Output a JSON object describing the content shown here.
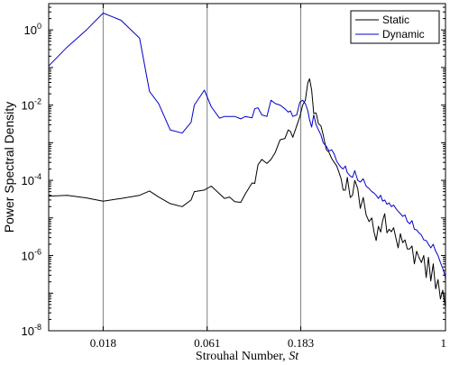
{
  "chart_data": {
    "type": "line",
    "xlabel": "Strouhal Number, ",
    "xlabel_italic": "St",
    "ylabel": "Power Spectral Density",
    "xscale": "log",
    "yscale": "log",
    "xlim": [
      0.0095,
      1
    ],
    "ylim": [
      1e-08,
      5
    ],
    "x_ticks": [
      {
        "value": 0.018,
        "label": "0.018"
      },
      {
        "value": 0.061,
        "label": "0.061"
      },
      {
        "value": 0.183,
        "label": "0.183"
      },
      {
        "value": 1,
        "label": "1"
      }
    ],
    "y_ticks": [
      {
        "value": 1e-08,
        "base": "10",
        "exp": "-8"
      },
      {
        "value": 1e-06,
        "base": "10",
        "exp": "-6"
      },
      {
        "value": 0.0001,
        "base": "10",
        "exp": "-4"
      },
      {
        "value": 0.01,
        "base": "10",
        "exp": "-2"
      },
      {
        "value": 1,
        "base": "10",
        "exp": "0"
      }
    ],
    "vertical_lines": [
      0.018,
      0.061,
      0.183
    ],
    "legend_position": "top-right",
    "grid": false,
    "series": [
      {
        "name": "Static",
        "color": "#000000",
        "points": [
          [
            0.0095,
            3.8e-05
          ],
          [
            0.0118,
            4e-05
          ],
          [
            0.0148,
            3.4e-05
          ],
          [
            0.018,
            2.8e-05
          ],
          [
            0.0222,
            3.3e-05
          ],
          [
            0.0276,
            4e-05
          ],
          [
            0.031,
            5.2e-05
          ],
          [
            0.0345,
            3.6e-05
          ],
          [
            0.0395,
            2.4e-05
          ],
          [
            0.0455,
            2e-05
          ],
          [
            0.0505,
            3e-05
          ],
          [
            0.0525,
            5e-05
          ],
          [
            0.059,
            5.5e-05
          ],
          [
            0.064,
            7e-05
          ],
          [
            0.0705,
            4.4e-05
          ],
          [
            0.0748,
            3.3e-05
          ],
          [
            0.0793,
            3.6e-05
          ],
          [
            0.0843,
            2.7e-05
          ],
          [
            0.0905,
            2.6e-05
          ],
          [
            0.0955,
            4.4e-05
          ],
          [
            0.1033,
            8.5e-05
          ],
          [
            0.1066,
            8.3e-05
          ],
          [
            0.1108,
            0.00026
          ],
          [
            0.1158,
            0.00036
          ],
          [
            0.123,
            0.00028
          ],
          [
            0.129,
            0.00036
          ],
          [
            0.1356,
            0.00055
          ],
          [
            0.1435,
            0.0012
          ],
          [
            0.152,
            0.0013
          ],
          [
            0.158,
            0.0022
          ],
          [
            0.162,
            0.002
          ],
          [
            0.1667,
            0.0014
          ],
          [
            0.1745,
            0.0028
          ],
          [
            0.181,
            0.0049
          ],
          [
            0.187,
            0.01
          ],
          [
            0.193,
            0.0135
          ],
          [
            0.199,
            0.04
          ],
          [
            0.203,
            0.05
          ],
          [
            0.208,
            0.025
          ],
          [
            0.213,
            0.006
          ],
          [
            0.219,
            0.0062
          ],
          [
            0.225,
            0.0032
          ],
          [
            0.232,
            0.0028
          ],
          [
            0.238,
            0.0016
          ],
          [
            0.247,
            0.00065
          ],
          [
            0.255,
            0.00055
          ],
          [
            0.263,
            0.00038
          ],
          [
            0.271,
            0.0003
          ],
          [
            0.279,
            0.00024
          ],
          [
            0.287,
            0.00016
          ],
          [
            0.294,
            0.00011
          ],
          [
            0.301,
            5.5e-05
          ],
          [
            0.309,
            5.5e-05
          ],
          [
            0.316,
            0.00012
          ],
          [
            0.327,
            3.5e-05
          ],
          [
            0.336,
            4e-05
          ],
          [
            0.345,
            0.0001
          ],
          [
            0.357,
            6e-05
          ],
          [
            0.368,
            1.8e-05
          ],
          [
            0.381,
            3.5e-05
          ],
          [
            0.394,
            1.2e-05
          ],
          [
            0.408,
            8e-06
          ],
          [
            0.421,
            1e-05
          ],
          [
            0.432,
            4.3e-06
          ],
          [
            0.443,
            2.5e-06
          ],
          [
            0.455,
            6e-06
          ],
          [
            0.467,
            4.2e-06
          ],
          [
            0.478,
            8.5e-06
          ],
          [
            0.49,
            1.3e-05
          ],
          [
            0.503,
            4e-06
          ],
          [
            0.516,
            5e-06
          ],
          [
            0.53,
            4.3e-06
          ],
          [
            0.544,
            5.5e-06
          ],
          [
            0.558,
            3e-06
          ],
          [
            0.574,
            1.6e-06
          ],
          [
            0.589,
            3.8e-06
          ],
          [
            0.605,
            2.2e-06
          ],
          [
            0.622,
            2.6e-06
          ],
          [
            0.639,
            1.5e-06
          ],
          [
            0.657,
            1.5e-06
          ],
          [
            0.675,
            1.8e-06
          ],
          [
            0.694,
            6e-07
          ],
          [
            0.713,
            1.3e-06
          ],
          [
            0.733,
            9e-07
          ],
          [
            0.754,
            6.5e-07
          ],
          [
            0.775,
            1e-06
          ],
          [
            0.797,
            2.6e-07
          ],
          [
            0.819,
            9e-07
          ],
          [
            0.842,
            2.1e-07
          ],
          [
            0.866,
            6e-07
          ],
          [
            0.891,
            1.3e-07
          ],
          [
            0.916,
            2.3e-07
          ],
          [
            0.942,
            7e-08
          ],
          [
            0.969,
            1.2e-07
          ],
          [
            0.997,
            4.5e-08
          ],
          [
            1.0,
            1e-07
          ]
        ]
      },
      {
        "name": "Dynamic",
        "color": "#0000cc",
        "points": [
          [
            0.0095,
            0.11
          ],
          [
            0.0118,
            0.35
          ],
          [
            0.0148,
            1.0
          ],
          [
            0.018,
            2.8
          ],
          [
            0.0222,
            1.8
          ],
          [
            0.0276,
            0.6
          ],
          [
            0.031,
            0.023
          ],
          [
            0.0345,
            0.011
          ],
          [
            0.0395,
            0.0022
          ],
          [
            0.0455,
            0.0018
          ],
          [
            0.0505,
            0.0035
          ],
          [
            0.0525,
            0.01
          ],
          [
            0.059,
            0.025
          ],
          [
            0.064,
            0.009
          ],
          [
            0.0705,
            0.0045
          ],
          [
            0.0748,
            0.005
          ],
          [
            0.0793,
            0.005
          ],
          [
            0.0843,
            0.005
          ],
          [
            0.0905,
            0.0043
          ],
          [
            0.0955,
            0.005
          ],
          [
            0.1033,
            0.0046
          ],
          [
            0.1066,
            0.008
          ],
          [
            0.1108,
            0.0085
          ],
          [
            0.1158,
            0.0055
          ],
          [
            0.123,
            0.005
          ],
          [
            0.129,
            0.0135
          ],
          [
            0.1356,
            0.011
          ],
          [
            0.1435,
            0.01
          ],
          [
            0.152,
            0.008
          ],
          [
            0.158,
            0.0065
          ],
          [
            0.162,
            0.007
          ],
          [
            0.1667,
            0.005
          ],
          [
            0.1745,
            0.0055
          ],
          [
            0.181,
            0.012
          ],
          [
            0.187,
            0.0135
          ],
          [
            0.193,
            0.011
          ],
          [
            0.199,
            0.007
          ],
          [
            0.203,
            0.004
          ],
          [
            0.208,
            0.0026
          ],
          [
            0.213,
            0.0055
          ],
          [
            0.219,
            0.003
          ],
          [
            0.225,
            0.0022
          ],
          [
            0.232,
            0.0016
          ],
          [
            0.238,
            0.001
          ],
          [
            0.247,
            0.0008
          ],
          [
            0.255,
            0.0006
          ],
          [
            0.263,
            0.00065
          ],
          [
            0.271,
            0.0005
          ],
          [
            0.279,
            0.00032
          ],
          [
            0.287,
            0.00026
          ],
          [
            0.294,
            0.00022
          ],
          [
            0.301,
            0.0002
          ],
          [
            0.309,
            0.00024
          ],
          [
            0.316,
            0.00016
          ],
          [
            0.327,
            0.00013
          ],
          [
            0.336,
            0.00012
          ],
          [
            0.345,
            0.00018
          ],
          [
            0.357,
            0.0001
          ],
          [
            0.368,
            9e-05
          ],
          [
            0.381,
            0.00011
          ],
          [
            0.394,
            7e-05
          ],
          [
            0.408,
            6e-05
          ],
          [
            0.421,
            5e-05
          ],
          [
            0.432,
            4.6e-05
          ],
          [
            0.443,
            4e-05
          ],
          [
            0.455,
            3.3e-05
          ],
          [
            0.467,
            4e-05
          ],
          [
            0.478,
            2.8e-05
          ],
          [
            0.49,
            3e-05
          ],
          [
            0.503,
            2.3e-05
          ],
          [
            0.516,
            2.5e-05
          ],
          [
            0.53,
            2e-05
          ],
          [
            0.544,
            2.2e-05
          ],
          [
            0.558,
            1.8e-05
          ],
          [
            0.574,
            1.5e-05
          ],
          [
            0.589,
            1.3e-05
          ],
          [
            0.605,
            1.1e-05
          ],
          [
            0.622,
            1.2e-05
          ],
          [
            0.639,
            8e-06
          ],
          [
            0.657,
            7e-06
          ],
          [
            0.675,
            8.5e-06
          ],
          [
            0.694,
            5e-06
          ],
          [
            0.713,
            4.8e-06
          ],
          [
            0.733,
            4e-06
          ],
          [
            0.754,
            3.5e-06
          ],
          [
            0.775,
            2.6e-06
          ],
          [
            0.797,
            2.5e-06
          ],
          [
            0.819,
            2e-06
          ],
          [
            0.842,
            1.6e-06
          ],
          [
            0.866,
            2e-06
          ],
          [
            0.891,
            1.3e-06
          ],
          [
            0.916,
            1e-06
          ],
          [
            0.942,
            6.5e-07
          ],
          [
            0.969,
            4.5e-07
          ],
          [
            0.997,
            2.8e-07
          ],
          [
            1.0,
            2e-07
          ]
        ]
      }
    ]
  }
}
